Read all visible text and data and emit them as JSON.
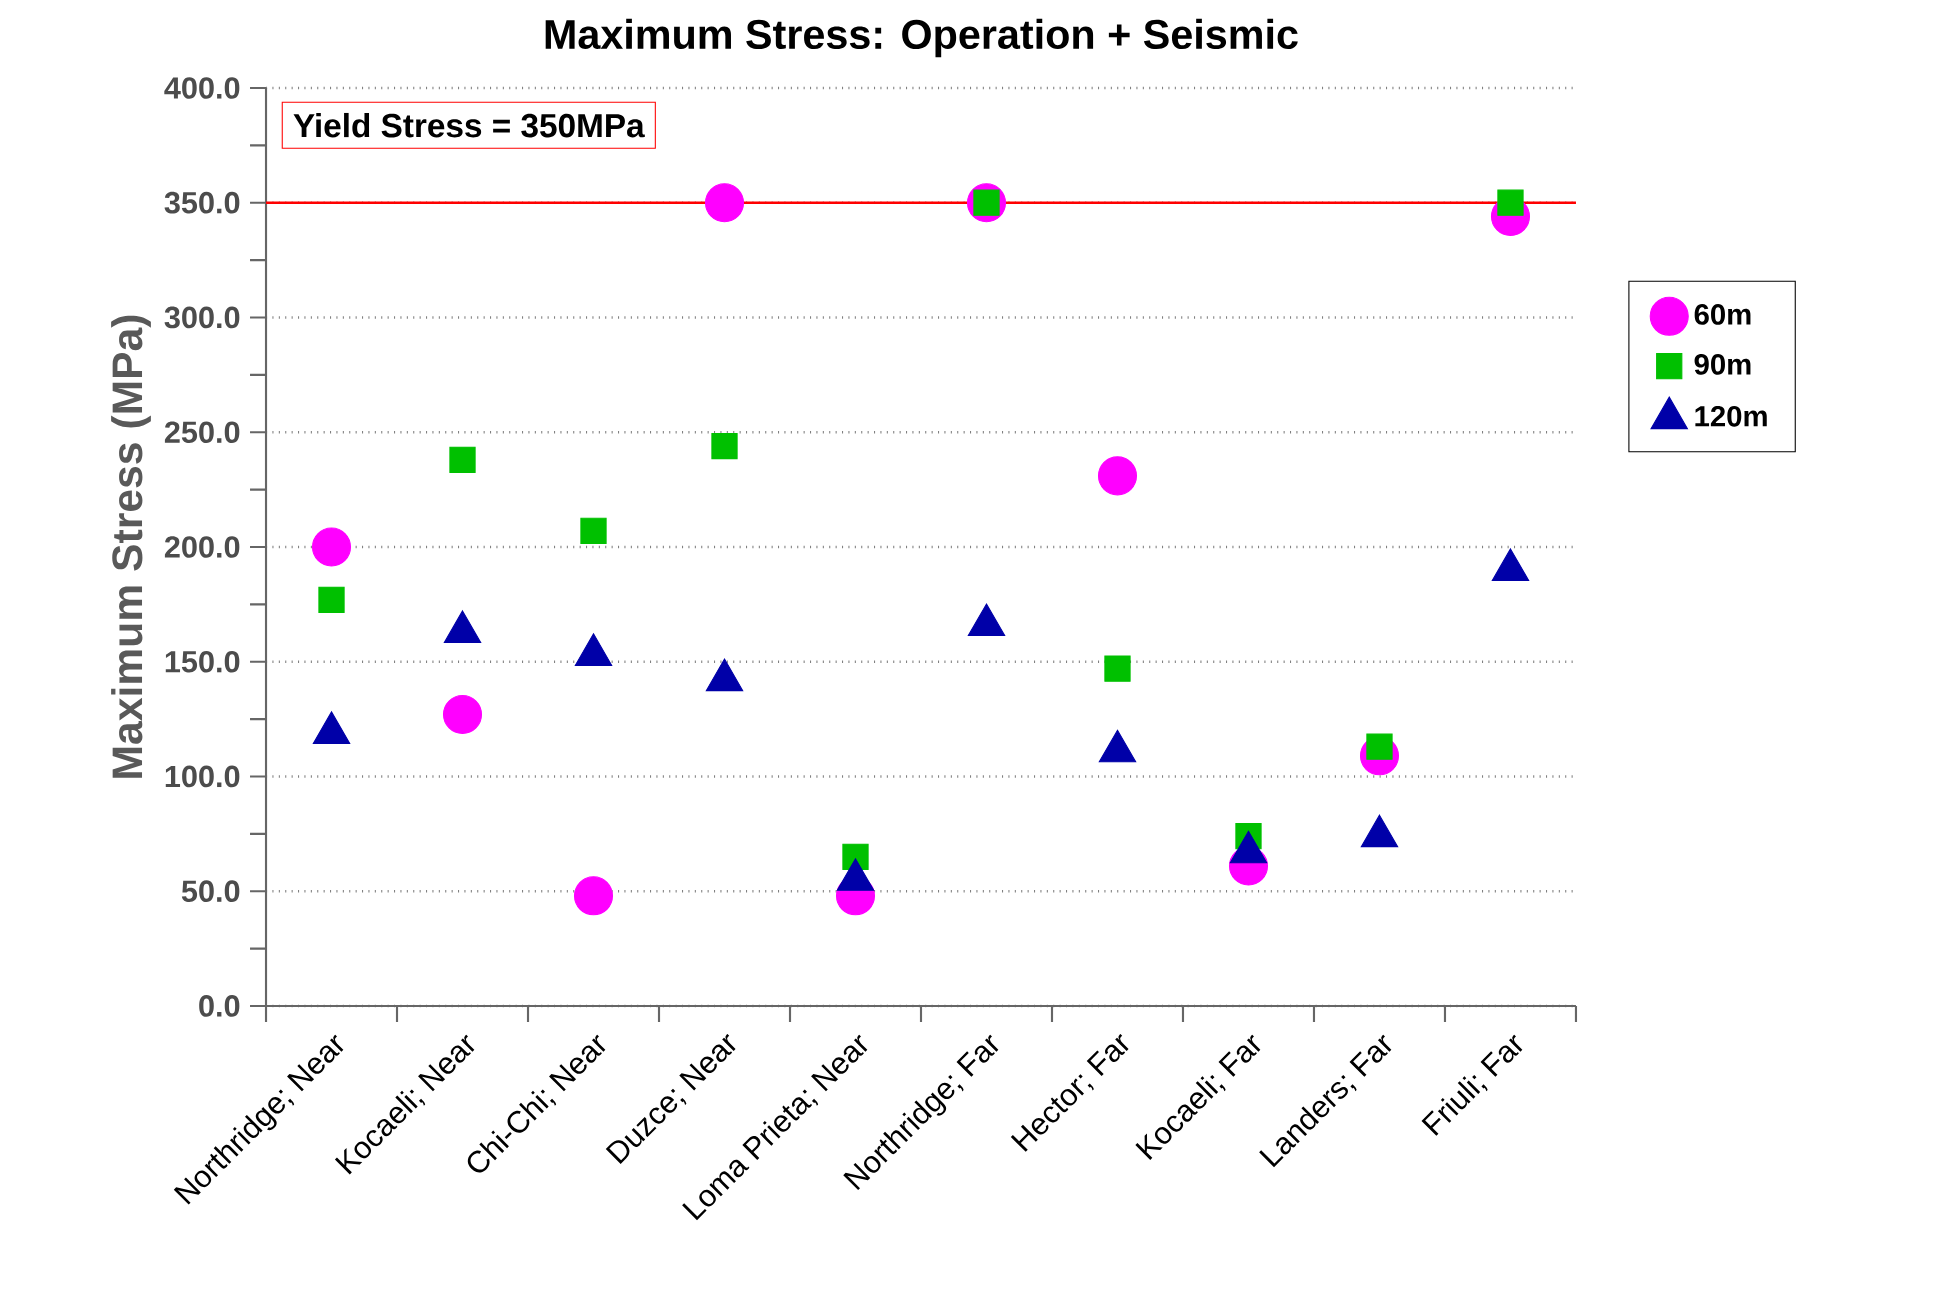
{
  "chart_data": {
    "type": "scatter",
    "title": "Maximum Stress: Operation + Seismic",
    "ylabel": "Maximum Stress (MPa)",
    "categories": [
      "Northridge; Near",
      "Kocaeli; Near",
      "Chi-Chi; Near",
      "Duzce; Near",
      "Loma Prieta; Near",
      "Northridge; Far",
      "Hector; Far",
      "Kocaeli; Far",
      "Landers; Far",
      "Friuli; Far"
    ],
    "series": [
      {
        "name": "60m",
        "color": "#ff00ff",
        "marker": "circle",
        "values": [
          200,
          127,
          48,
          350,
          48,
          350,
          231,
          61,
          109,
          344
        ]
      },
      {
        "name": "90m",
        "color": "#00c000",
        "marker": "square",
        "values": [
          177,
          238,
          207,
          244,
          65,
          350,
          147,
          74,
          113,
          350
        ]
      },
      {
        "name": "120m",
        "color": "#0000a8",
        "marker": "triangle",
        "values": [
          119,
          163,
          153,
          142,
          55,
          166,
          111,
          67,
          74,
          190
        ]
      }
    ],
    "ylim": [
      0,
      400
    ],
    "yticks": [
      {
        "value": 0,
        "label": "0.0"
      },
      {
        "value": 50,
        "label": "50.0"
      },
      {
        "value": 100,
        "label": "100.0"
      },
      {
        "value": 150,
        "label": "150.0"
      },
      {
        "value": 200,
        "label": "200.0"
      },
      {
        "value": 250,
        "label": "250.0"
      },
      {
        "value": 300,
        "label": "300.0"
      },
      {
        "value": 350,
        "label": "350.0"
      },
      {
        "value": 400,
        "label": "400.0"
      }
    ],
    "grid": "y",
    "legend": "right",
    "ref_lines": [
      {
        "axis": "y",
        "value": 350,
        "label": "Yield Stress = 350MPa",
        "color": "#ff0000"
      }
    ]
  }
}
